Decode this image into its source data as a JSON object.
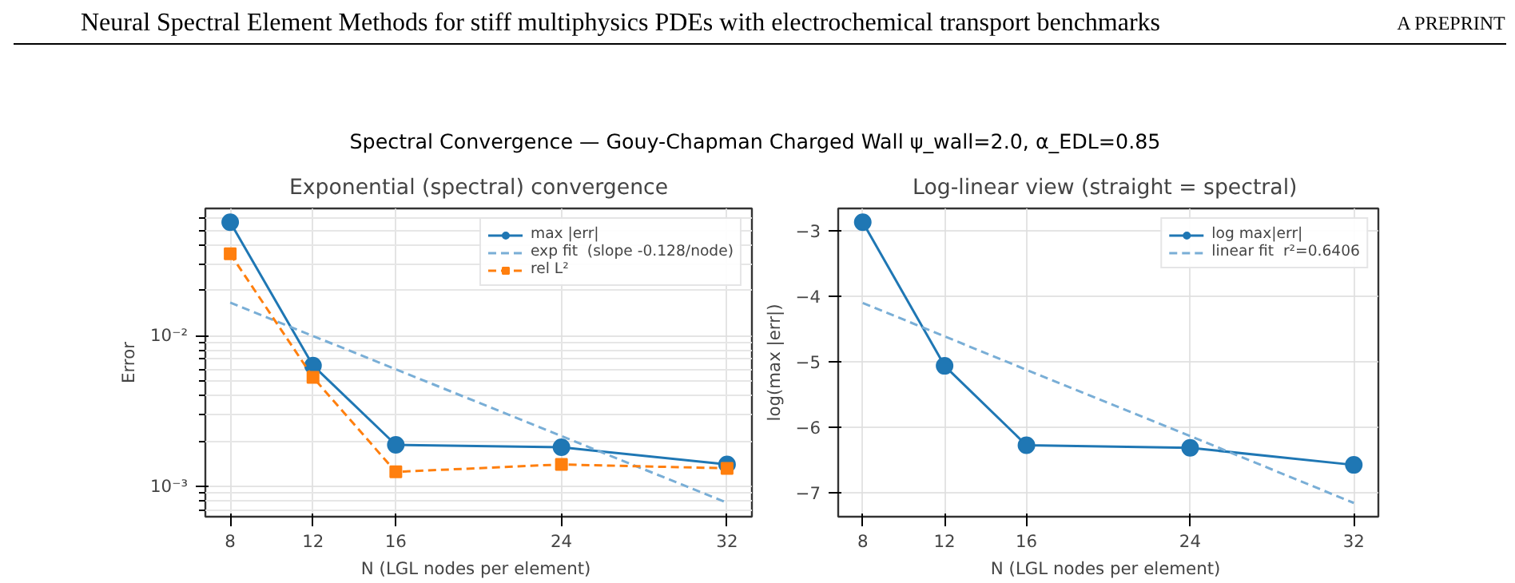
{
  "chart_data": [
    {
      "type": "line",
      "title": "Exponential (spectral) convergence",
      "xlabel": "N  (LGL nodes per element)",
      "ylabel": "Error",
      "annotations": [
        "Neural Spectral Element Methods for stiff multiphysics PDEs with electrochemical transport benchmarks",
        "A PREPRINT",
        "Spectral Convergence — Gouy-Chapman Charged Wall  ψ_wall=2.0, α_EDL=0.85"
      ],
      "x": [
        8,
        12,
        16,
        24,
        32
      ],
      "series": [
        {
          "name": "max |err|",
          "color": "#1f77b4",
          "values": [
            0.0567,
            0.00635,
            0.00189,
            0.00182,
            0.0014
          ],
          "marker": "circle",
          "line_style": "solid"
        },
        {
          "name": "exp fit  (slope -0.128/node)",
          "color": "#79aed6",
          "values": [
            0.0166,
            0.00997,
            0.006,
            0.00216,
            0.00078
          ],
          "marker": "none",
          "line_style": "dashed"
        },
        {
          "name": "rel L²",
          "color": "#ff7f0e",
          "values": [
            0.035,
            0.0053,
            0.00125,
            0.0014,
            0.00132
          ],
          "marker": "square",
          "line_style": "dashed"
        }
      ],
      "log": "y",
      "xlim": [
        6.8,
        33.2
      ],
      "ylim": [
        0.00063,
        0.07
      ],
      "xticks": [
        8,
        12,
        16,
        24,
        32
      ],
      "yticks": [
        {
          "value": 0.0007,
          "label": null
        },
        {
          "value": 0.0008,
          "label": null
        },
        {
          "value": 0.0009,
          "label": null
        },
        {
          "value": 0.001,
          "label": "10⁻³"
        },
        {
          "value": 0.002,
          "label": null
        },
        {
          "value": 0.003,
          "label": null
        },
        {
          "value": 0.004,
          "label": null
        },
        {
          "value": 0.005,
          "label": null
        },
        {
          "value": 0.006,
          "label": null
        },
        {
          "value": 0.007,
          "label": null
        },
        {
          "value": 0.008,
          "label": null
        },
        {
          "value": 0.009,
          "label": null
        },
        {
          "value": 0.01,
          "label": "10⁻²"
        },
        {
          "value": 0.02,
          "label": null
        },
        {
          "value": 0.03,
          "label": null
        },
        {
          "value": 0.04,
          "label": null
        },
        {
          "value": 0.05,
          "label": null
        },
        {
          "value": 0.06,
          "label": null
        }
      ],
      "grid": true,
      "legend": "top right"
    },
    {
      "type": "line",
      "title": "Log-linear view  (straight = spectral)",
      "xlabel": "N  (LGL nodes per element)",
      "ylabel": "log(max |err|)",
      "x": [
        8,
        12,
        16,
        24,
        32
      ],
      "series": [
        {
          "name": "log max|err|",
          "color": "#1f77b4",
          "values": [
            -2.87,
            -5.06,
            -6.27,
            -6.31,
            -6.57
          ],
          "marker": "circle",
          "line_style": "solid"
        },
        {
          "name": "linear fit  r²=0.6406",
          "color": "#79aed6",
          "values": [
            -4.1,
            -4.61,
            -5.12,
            -6.13,
            -7.15
          ],
          "marker": "none",
          "line_style": "dashed"
        }
      ],
      "xlim": [
        6.8,
        33.2
      ],
      "ylim": [
        -7.36,
        -2.66
      ],
      "xticks": [
        8,
        12,
        16,
        24,
        32
      ],
      "yticks": [
        {
          "value": -7,
          "label": "−7"
        },
        {
          "value": -6,
          "label": "−6"
        },
        {
          "value": -5,
          "label": "−5"
        },
        {
          "value": -4,
          "label": "−4"
        },
        {
          "value": -3,
          "label": "−3"
        }
      ],
      "grid": true,
      "legend": "top right"
    }
  ]
}
